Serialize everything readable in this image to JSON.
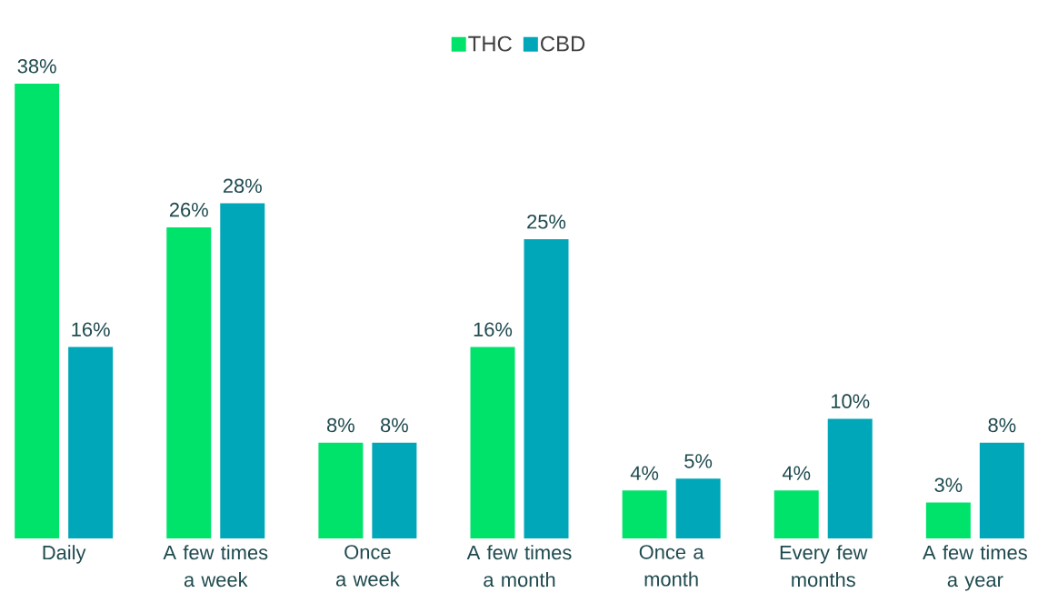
{
  "chart_data": {
    "type": "bar",
    "categories": [
      "Daily",
      "A few times a week",
      "Once a week",
      "A few times a month",
      "Once a month",
      "Every few months",
      "A few times a year"
    ],
    "series": [
      {
        "name": "THC",
        "color": "#00e36b",
        "values": [
          38,
          26,
          8,
          16,
          4,
          4,
          3
        ],
        "value_labels": [
          "38%",
          "26%",
          "8%",
          "16%",
          "4%",
          "4%",
          "3%"
        ]
      },
      {
        "name": "CBD",
        "color": "#00a7b8",
        "values": [
          16,
          28,
          8,
          25,
          5,
          10,
          8
        ],
        "value_labels": [
          "16%",
          "28%",
          "8%",
          "25%",
          "5%",
          "10%",
          "8%"
        ]
      }
    ],
    "legend": "top"
  }
}
